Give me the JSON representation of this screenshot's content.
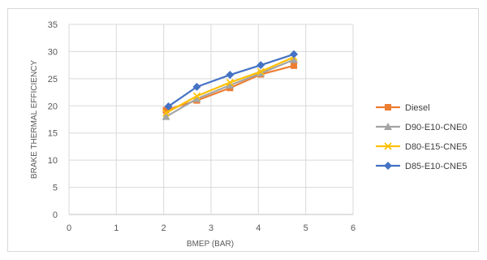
{
  "chart_data": {
    "type": "line",
    "title": "",
    "xlabel": "BMEP (BAR)",
    "ylabel": "BRAKE THERMAL EFFICIENCY",
    "xlim": [
      0,
      6
    ],
    "ylim": [
      0,
      35
    ],
    "xticks": [
      0,
      1,
      2,
      3,
      4,
      5,
      6
    ],
    "yticks": [
      0,
      5,
      10,
      15,
      20,
      25,
      30,
      35
    ],
    "grid": true,
    "legend_position": "right",
    "series": [
      {
        "name": "Diesel",
        "color": "#ed7d31",
        "marker": "square",
        "x": [
          2.05,
          2.7,
          3.4,
          4.05,
          4.75
        ],
        "y": [
          19.2,
          21.0,
          23.3,
          25.8,
          27.4
        ]
      },
      {
        "name": "D90-E10-CNE0",
        "color": "#a5a5a5",
        "marker": "triangle",
        "x": [
          2.05,
          2.7,
          3.4,
          4.05,
          4.75
        ],
        "y": [
          18.0,
          21.3,
          23.8,
          26.0,
          28.5
        ]
      },
      {
        "name": "D80-E15-CNE5",
        "color": "#ffc000",
        "marker": "x",
        "x": [
          2.05,
          2.7,
          3.4,
          4.05,
          4.75
        ],
        "y": [
          18.7,
          21.8,
          24.3,
          26.3,
          29.0
        ]
      },
      {
        "name": "D85-E10-CNE5",
        "color": "#4472c4",
        "marker": "diamond",
        "x": [
          2.1,
          2.7,
          3.4,
          4.05,
          4.75
        ],
        "y": [
          19.9,
          23.5,
          25.7,
          27.5,
          29.5
        ]
      }
    ]
  }
}
